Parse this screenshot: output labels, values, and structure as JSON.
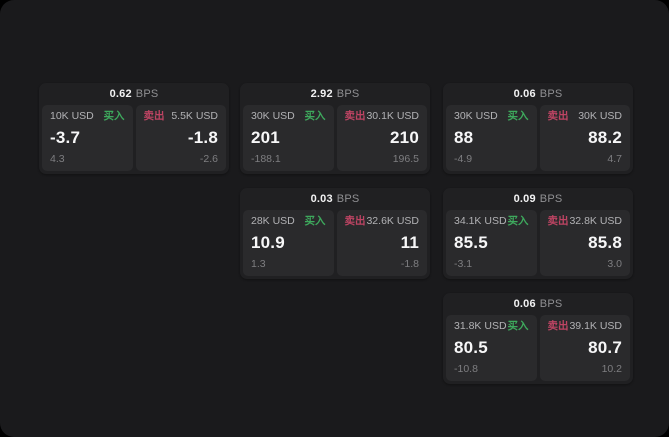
{
  "labels": {
    "buy": "买入",
    "sell": "卖出",
    "bps_unit": "BPS"
  },
  "colors": {
    "background": "#000000",
    "panel": "#1a1a1c",
    "card": "#202022",
    "cell": "#2a2a2c",
    "buy_green": "#3ea95d",
    "sell_red": "#be4463"
  },
  "cards": [
    {
      "bps": "0.62",
      "buy": {
        "amount": "10K USD",
        "value": "-3.7",
        "sub": "4.3"
      },
      "sell": {
        "amount": "5.5K USD",
        "value": "-1.8",
        "sub": "-2.6"
      }
    },
    {
      "bps": "2.92",
      "buy": {
        "amount": "30K USD",
        "value": "201",
        "sub": "-188.1"
      },
      "sell": {
        "amount": "30.1K USD",
        "value": "210",
        "sub": "196.5"
      }
    },
    {
      "bps": "0.06",
      "buy": {
        "amount": "30K USD",
        "value": "88",
        "sub": "-4.9"
      },
      "sell": {
        "amount": "30K USD",
        "value": "88.2",
        "sub": "4.7"
      }
    },
    {
      "bps": "0.03",
      "buy": {
        "amount": "28K USD",
        "value": "10.9",
        "sub": "1.3"
      },
      "sell": {
        "amount": "32.6K USD",
        "value": "11",
        "sub": "-1.8"
      }
    },
    {
      "bps": "0.09",
      "buy": {
        "amount": "34.1K USD",
        "value": "85.5",
        "sub": "-3.1"
      },
      "sell": {
        "amount": "32.8K USD",
        "value": "85.8",
        "sub": "3.0"
      }
    },
    {
      "bps": "0.06",
      "buy": {
        "amount": "31.8K USD",
        "value": "80.5",
        "sub": "-10.8"
      },
      "sell": {
        "amount": "39.1K USD",
        "value": "80.7",
        "sub": "10.2"
      }
    }
  ]
}
